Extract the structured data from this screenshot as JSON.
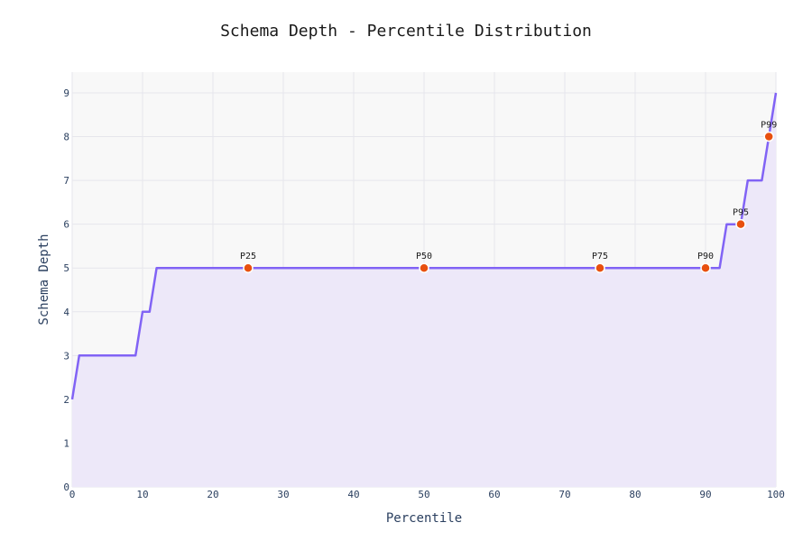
{
  "chart_data": {
    "type": "area",
    "title": "Schema Depth - Percentile Distribution",
    "xlabel": "Percentile",
    "ylabel": "Schema Depth",
    "xlim": [
      0,
      100
    ],
    "ylim": [
      0,
      9
    ],
    "x_ticks": [
      0,
      10,
      20,
      30,
      40,
      50,
      60,
      70,
      80,
      90,
      100
    ],
    "y_ticks": [
      0,
      1,
      2,
      3,
      4,
      5,
      6,
      7,
      8,
      9
    ],
    "grid": true,
    "series": [
      {
        "x": [
          0,
          1,
          2,
          3,
          4,
          5,
          6,
          7,
          8,
          9,
          10,
          11,
          12,
          13,
          14,
          15,
          16,
          17,
          18,
          19,
          20,
          21,
          22,
          23,
          24,
          25,
          26,
          27,
          28,
          29,
          30,
          31,
          32,
          33,
          34,
          35,
          36,
          37,
          38,
          39,
          40,
          41,
          42,
          43,
          44,
          45,
          46,
          47,
          48,
          49,
          50,
          51,
          52,
          53,
          54,
          55,
          56,
          57,
          58,
          59,
          60,
          61,
          62,
          63,
          64,
          65,
          66,
          67,
          68,
          69,
          70,
          71,
          72,
          73,
          74,
          75,
          76,
          77,
          78,
          79,
          80,
          81,
          82,
          83,
          84,
          85,
          86,
          87,
          88,
          89,
          90,
          91,
          92,
          93,
          94,
          95,
          96,
          97,
          98,
          99,
          100
        ],
        "y": [
          2,
          3,
          3,
          3,
          3,
          3,
          3,
          3,
          3,
          3,
          4,
          4,
          5,
          5,
          5,
          5,
          5,
          5,
          5,
          5,
          5,
          5,
          5,
          5,
          5,
          5,
          5,
          5,
          5,
          5,
          5,
          5,
          5,
          5,
          5,
          5,
          5,
          5,
          5,
          5,
          5,
          5,
          5,
          5,
          5,
          5,
          5,
          5,
          5,
          5,
          5,
          5,
          5,
          5,
          5,
          5,
          5,
          5,
          5,
          5,
          5,
          5,
          5,
          5,
          5,
          5,
          5,
          5,
          5,
          5,
          5,
          5,
          5,
          5,
          5,
          5,
          5,
          5,
          5,
          5,
          5,
          5,
          5,
          5,
          5,
          5,
          5,
          5,
          5,
          5,
          5,
          5,
          5,
          6,
          6,
          6,
          7,
          7,
          7,
          8,
          9
        ],
        "line_color": "#8163f5",
        "fill_color": "#ede8f9"
      }
    ],
    "markers": [
      {
        "label": "P25",
        "x": 25,
        "y": 5
      },
      {
        "label": "P50",
        "x": 50,
        "y": 5
      },
      {
        "label": "P75",
        "x": 75,
        "y": 5
      },
      {
        "label": "P90",
        "x": 90,
        "y": 5
      },
      {
        "label": "P95",
        "x": 95,
        "y": 6
      },
      {
        "label": "P99",
        "x": 99,
        "y": 8
      }
    ],
    "marker_color": "#e8500f",
    "marker_outline": "#ffffff",
    "plot_background": "#f8f8f8",
    "grid_color": "#e6e6ec"
  }
}
